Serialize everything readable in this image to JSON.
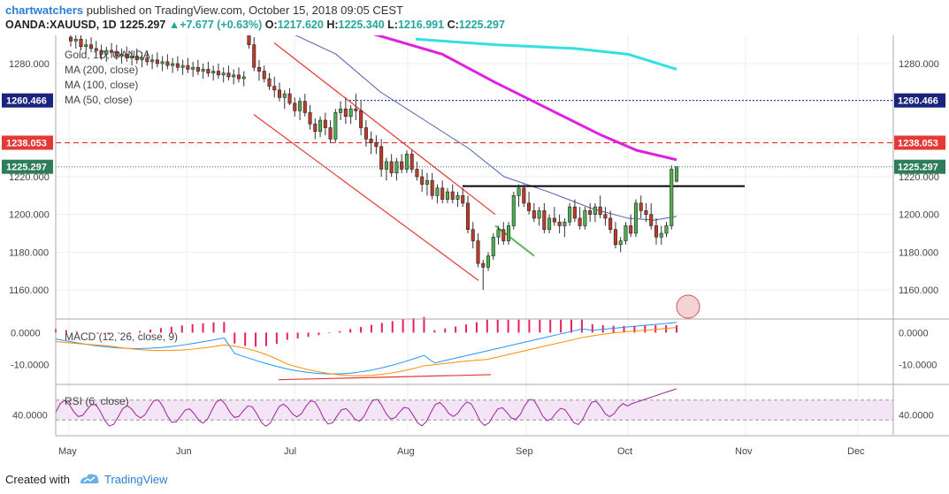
{
  "header": {
    "author": "chartwatchers",
    "published_text": "published on TradingView.com, October 15, 2018 09:05 CEST",
    "symbol": "OANDA:XAUUSD, 1D",
    "last": "1225.297",
    "change_arrow": "▲",
    "change": "+7.677 (+0.63%)",
    "open_label": "O:",
    "open": "1217.620",
    "high_label": "H:",
    "high": "1225.340",
    "low_label": "L:",
    "low": "1216.991",
    "close_label": "C:",
    "close": "1225.297"
  },
  "legend": {
    "title": "Gold, 1D, OANDA",
    "ma200": "MA (200, close)",
    "ma100": "MA (100, close)",
    "ma50": "MA (50, close)",
    "macd": "MACD (12, 26, close, 9)",
    "rsi": "RSI (6, close)"
  },
  "footer": {
    "created_with": "Created with",
    "brand": "TradingView"
  },
  "colors": {
    "up": "#26a69a",
    "down": "#ef5350",
    "candle_up_fill": "#4caf50",
    "candle_down_fill": "#c0392b",
    "ma200": "#33e0e0",
    "ma100": "#e020e0",
    "ma50": "#4f5fb0",
    "trendline": "#e53935",
    "resistance": "#000000",
    "green_line": "#5cb85c",
    "macd_line": "#2196f3",
    "signal_line": "#ff8c00",
    "hist": "#e91e63",
    "rsi_line": "#a020a0",
    "rsi_band": "#f3e5f5",
    "price_label_blue": "#1a237e",
    "price_label_red": "#e53935",
    "price_label_green": "#2e7d5a"
  },
  "chart_data": {
    "type": "candlestick",
    "price_axis": {
      "ticks": [
        "1280.000",
        "1220.000",
        "1200.000",
        "1180.000",
        "1160.000"
      ],
      "range": [
        1145,
        1295
      ]
    },
    "price_labels": [
      {
        "name": "blue-line",
        "value": "1260.466"
      },
      {
        "name": "red-dashed-line",
        "value": "1238.053"
      },
      {
        "name": "last-price",
        "value": "1225.297"
      }
    ],
    "macd_axis": {
      "ticks": [
        "0.0000",
        "-10.0000"
      ],
      "range": [
        -16,
        4
      ]
    },
    "rsi_axis": {
      "ticks": [
        "40.0000"
      ],
      "range": [
        0,
        100
      ],
      "bands": [
        30,
        70
      ]
    },
    "time_axis": [
      "May",
      "Jun",
      "Jul",
      "Aug",
      "Sep",
      "Oct",
      "Nov",
      "Dec"
    ],
    "candles": [
      [
        1294,
        1298,
        1289,
        1292
      ],
      [
        1292,
        1296,
        1288,
        1293
      ],
      [
        1293,
        1295,
        1287,
        1289
      ],
      [
        1289,
        1293,
        1285,
        1290
      ],
      [
        1290,
        1294,
        1286,
        1288
      ],
      [
        1288,
        1292,
        1284,
        1287
      ],
      [
        1287,
        1290,
        1282,
        1285
      ],
      [
        1285,
        1289,
        1281,
        1287
      ],
      [
        1287,
        1291,
        1283,
        1286
      ],
      [
        1286,
        1290,
        1282,
        1284
      ],
      [
        1284,
        1288,
        1280,
        1285
      ],
      [
        1285,
        1289,
        1281,
        1283
      ],
      [
        1283,
        1287,
        1279,
        1284
      ],
      [
        1284,
        1288,
        1280,
        1282
      ],
      [
        1282,
        1286,
        1278,
        1283
      ],
      [
        1283,
        1287,
        1279,
        1281
      ],
      [
        1281,
        1285,
        1277,
        1282
      ],
      [
        1282,
        1286,
        1278,
        1280
      ],
      [
        1280,
        1284,
        1276,
        1281
      ],
      [
        1281,
        1285,
        1277,
        1279
      ],
      [
        1279,
        1283,
        1275,
        1280
      ],
      [
        1280,
        1284,
        1276,
        1278
      ],
      [
        1278,
        1282,
        1274,
        1279
      ],
      [
        1279,
        1283,
        1275,
        1277
      ],
      [
        1277,
        1281,
        1273,
        1278
      ],
      [
        1278,
        1282,
        1274,
        1276
      ],
      [
        1276,
        1280,
        1272,
        1277
      ],
      [
        1277,
        1281,
        1273,
        1275
      ],
      [
        1275,
        1279,
        1271,
        1276
      ],
      [
        1276,
        1280,
        1272,
        1274
      ],
      [
        1274,
        1278,
        1270,
        1275
      ],
      [
        1275,
        1279,
        1271,
        1273
      ],
      [
        1273,
        1277,
        1269,
        1274
      ],
      [
        1274,
        1278,
        1270,
        1272
      ],
      [
        1272,
        1276,
        1268,
        1273
      ],
      [
        1296,
        1300,
        1288,
        1290
      ],
      [
        1290,
        1294,
        1276,
        1278
      ],
      [
        1278,
        1282,
        1271,
        1276
      ],
      [
        1276,
        1279,
        1270,
        1272
      ],
      [
        1272,
        1275,
        1266,
        1268
      ],
      [
        1268,
        1273,
        1262,
        1266
      ],
      [
        1266,
        1270,
        1260,
        1262
      ],
      [
        1262,
        1266,
        1256,
        1264
      ],
      [
        1264,
        1267,
        1258,
        1259
      ],
      [
        1259,
        1262,
        1252,
        1255
      ],
      [
        1255,
        1262,
        1250,
        1260
      ],
      [
        1260,
        1264,
        1252,
        1254
      ],
      [
        1254,
        1258,
        1245,
        1248
      ],
      [
        1248,
        1251,
        1240,
        1244
      ],
      [
        1244,
        1252,
        1241,
        1250
      ],
      [
        1250,
        1254,
        1242,
        1246
      ],
      [
        1246,
        1250,
        1238,
        1240
      ],
      [
        1240,
        1256,
        1238,
        1254
      ],
      [
        1254,
        1260,
        1250,
        1256
      ],
      [
        1256,
        1262,
        1248,
        1252
      ],
      [
        1252,
        1258,
        1248,
        1256
      ],
      [
        1256,
        1264,
        1250,
        1255
      ],
      [
        1255,
        1260,
        1242,
        1246
      ],
      [
        1246,
        1250,
        1236,
        1240
      ],
      [
        1240,
        1244,
        1232,
        1238
      ],
      [
        1238,
        1242,
        1232,
        1236
      ],
      [
        1236,
        1240,
        1220,
        1224
      ],
      [
        1224,
        1230,
        1218,
        1228
      ],
      [
        1228,
        1232,
        1220,
        1222
      ],
      [
        1222,
        1230,
        1218,
        1228
      ],
      [
        1228,
        1232,
        1222,
        1224
      ],
      [
        1224,
        1234,
        1222,
        1232
      ],
      [
        1232,
        1234,
        1222,
        1224
      ],
      [
        1224,
        1228,
        1218,
        1220
      ],
      [
        1220,
        1224,
        1212,
        1216
      ],
      [
        1216,
        1222,
        1210,
        1218
      ],
      [
        1218,
        1222,
        1208,
        1210
      ],
      [
        1210,
        1216,
        1206,
        1214
      ],
      [
        1214,
        1218,
        1206,
        1208
      ],
      [
        1208,
        1214,
        1206,
        1212
      ],
      [
        1212,
        1216,
        1206,
        1208
      ],
      [
        1208,
        1212,
        1204,
        1210
      ],
      [
        1210,
        1214,
        1204,
        1206
      ],
      [
        1206,
        1210,
        1190,
        1192
      ],
      [
        1192,
        1196,
        1182,
        1186
      ],
      [
        1186,
        1190,
        1172,
        1174
      ],
      [
        1174,
        1176,
        1160,
        1172
      ],
      [
        1172,
        1180,
        1170,
        1178
      ],
      [
        1178,
        1190,
        1176,
        1188
      ],
      [
        1188,
        1194,
        1184,
        1192
      ],
      [
        1192,
        1196,
        1184,
        1186
      ],
      [
        1186,
        1196,
        1184,
        1194
      ],
      [
        1194,
        1212,
        1192,
        1210
      ],
      [
        1210,
        1216,
        1204,
        1214
      ],
      [
        1214,
        1216,
        1204,
        1206
      ],
      [
        1206,
        1212,
        1200,
        1202
      ],
      [
        1202,
        1206,
        1196,
        1198
      ],
      [
        1198,
        1204,
        1194,
        1202
      ],
      [
        1202,
        1206,
        1190,
        1192
      ],
      [
        1192,
        1200,
        1190,
        1198
      ],
      [
        1198,
        1204,
        1194,
        1196
      ],
      [
        1196,
        1200,
        1190,
        1194
      ],
      [
        1194,
        1198,
        1188,
        1196
      ],
      [
        1196,
        1206,
        1194,
        1204
      ],
      [
        1204,
        1208,
        1196,
        1198
      ],
      [
        1198,
        1204,
        1192,
        1194
      ],
      [
        1194,
        1204,
        1192,
        1202
      ],
      [
        1202,
        1206,
        1196,
        1200
      ],
      [
        1200,
        1206,
        1196,
        1204
      ],
      [
        1204,
        1210,
        1198,
        1200
      ],
      [
        1200,
        1204,
        1194,
        1198
      ],
      [
        1198,
        1202,
        1190,
        1192
      ],
      [
        1192,
        1196,
        1182,
        1184
      ],
      [
        1184,
        1188,
        1180,
        1186
      ],
      [
        1186,
        1196,
        1184,
        1194
      ],
      [
        1194,
        1200,
        1188,
        1190
      ],
      [
        1190,
        1208,
        1188,
        1206
      ],
      [
        1206,
        1210,
        1198,
        1202
      ],
      [
        1202,
        1206,
        1196,
        1200
      ],
      [
        1200,
        1206,
        1192,
        1194
      ],
      [
        1194,
        1198,
        1184,
        1188
      ],
      [
        1188,
        1194,
        1184,
        1190
      ],
      [
        1190,
        1196,
        1188,
        1194
      ],
      [
        1194,
        1226,
        1192,
        1224
      ],
      [
        1217.62,
        1225.34,
        1216.99,
        1225.3
      ]
    ]
  }
}
